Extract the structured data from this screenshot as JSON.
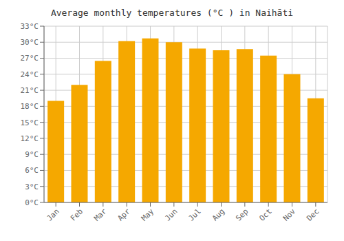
{
  "chart_data": {
    "type": "bar",
    "title": "Average monthly temperatures (°C ) in Naihāti",
    "categories": [
      "Jan",
      "Feb",
      "Mar",
      "Apr",
      "May",
      "Jun",
      "Jul",
      "Aug",
      "Sep",
      "Oct",
      "Nov",
      "Dec"
    ],
    "values": [
      19.0,
      22.0,
      26.5,
      30.2,
      30.7,
      30.0,
      28.8,
      28.5,
      28.7,
      27.5,
      24.0,
      19.5
    ],
    "color": "#F5A800",
    "ylim": [
      0,
      33
    ],
    "yticks": [
      {
        "value": 0,
        "label": "0°C"
      },
      {
        "value": 3,
        "label": "3°C"
      },
      {
        "value": 6,
        "label": "6°C"
      },
      {
        "value": 9,
        "label": "9°C"
      },
      {
        "value": 12,
        "label": "12°C"
      },
      {
        "value": 15,
        "label": "15°C"
      },
      {
        "value": 18,
        "label": "18°C"
      },
      {
        "value": 21,
        "label": "21°C"
      },
      {
        "value": 24,
        "label": "24°C"
      },
      {
        "value": 27,
        "label": "27°C"
      },
      {
        "value": 30,
        "label": "30°C"
      },
      {
        "value": 33,
        "label": "33°C"
      }
    ],
    "grid": true
  }
}
